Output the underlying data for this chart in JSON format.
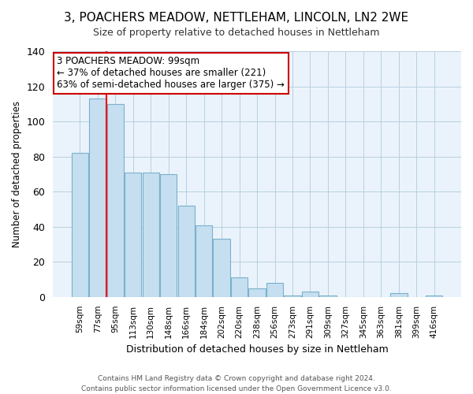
{
  "title": "3, POACHERS MEADOW, NETTLEHAM, LINCOLN, LN2 2WE",
  "subtitle": "Size of property relative to detached houses in Nettleham",
  "xlabel": "Distribution of detached houses by size in Nettleham",
  "ylabel": "Number of detached properties",
  "bar_color": "#c5dff0",
  "bar_edge_color": "#7ab0cc",
  "plot_bg_color": "#eaf3fb",
  "categories": [
    "59sqm",
    "77sqm",
    "95sqm",
    "113sqm",
    "130sqm",
    "148sqm",
    "166sqm",
    "184sqm",
    "202sqm",
    "220sqm",
    "238sqm",
    "256sqm",
    "273sqm",
    "291sqm",
    "309sqm",
    "327sqm",
    "345sqm",
    "363sqm",
    "381sqm",
    "399sqm",
    "416sqm"
  ],
  "values": [
    82,
    113,
    110,
    71,
    71,
    70,
    52,
    41,
    33,
    11,
    5,
    8,
    1,
    3,
    1,
    0,
    0,
    0,
    2,
    0,
    1
  ],
  "ylim": [
    0,
    140
  ],
  "yticks": [
    0,
    20,
    40,
    60,
    80,
    100,
    120,
    140
  ],
  "red_line_x": 2.0,
  "annotation_title": "3 POACHERS MEADOW: 99sqm",
  "annotation_line1": "← 37% of detached houses are smaller (221)",
  "annotation_line2": "63% of semi-detached houses are larger (375) →",
  "annotation_box_color": "#ffffff",
  "annotation_box_edge": "#cc0000",
  "footer1": "Contains HM Land Registry data © Crown copyright and database right 2024.",
  "footer2": "Contains public sector information licensed under the Open Government Licence v3.0."
}
